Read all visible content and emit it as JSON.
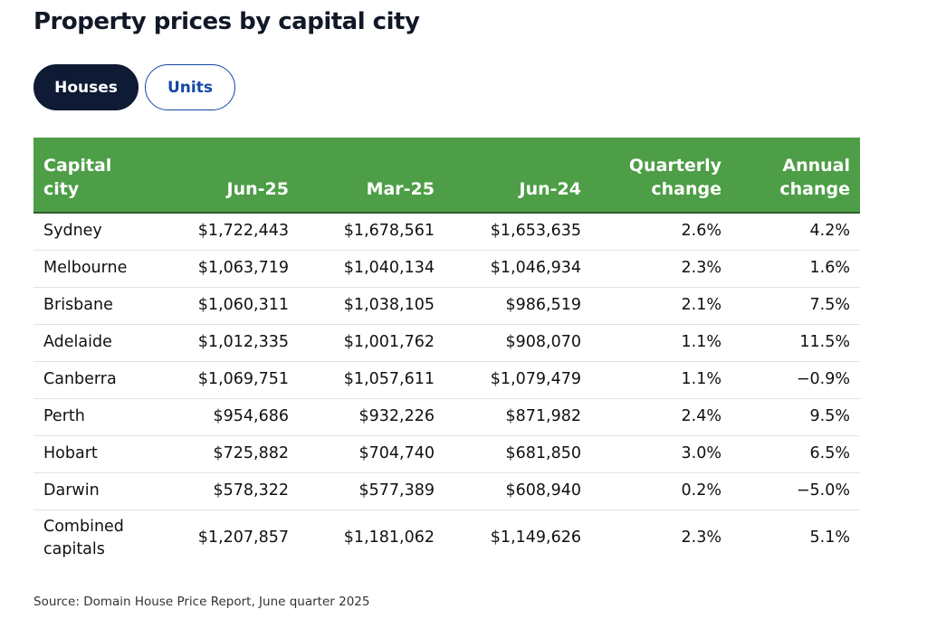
{
  "page": {
    "title": "Property prices by capital city",
    "source": "Source: Domain House Price Report, June quarter 2025"
  },
  "tabs": [
    {
      "label": "Houses",
      "active": true
    },
    {
      "label": "Units",
      "active": false
    }
  ],
  "colors": {
    "header_background": "#4d9e46",
    "active_tab": "#0f1a35",
    "inactive_tab_text": "#1447a6"
  },
  "chart_data": {
    "type": "table",
    "title": "Property prices by capital city",
    "columns": [
      "Capital city",
      "Jun-25",
      "Mar-25",
      "Jun-24",
      "Quarterly change",
      "Annual change"
    ],
    "rows": [
      {
        "city": "Sydney",
        "jun25": "$1,722,443",
        "mar25": "$1,678,561",
        "jun24": "$1,653,635",
        "quarterly": "2.6%",
        "annual": "4.2%"
      },
      {
        "city": "Melbourne",
        "jun25": "$1,063,719",
        "mar25": "$1,040,134",
        "jun24": "$1,046,934",
        "quarterly": "2.3%",
        "annual": "1.6%"
      },
      {
        "city": "Brisbane",
        "jun25": "$1,060,311",
        "mar25": "$1,038,105",
        "jun24": "$986,519",
        "quarterly": "2.1%",
        "annual": "7.5%"
      },
      {
        "city": "Adelaide",
        "jun25": "$1,012,335",
        "mar25": "$1,001,762",
        "jun24": "$908,070",
        "quarterly": "1.1%",
        "annual": "11.5%"
      },
      {
        "city": "Canberra",
        "jun25": "$1,069,751",
        "mar25": "$1,057,611",
        "jun24": "$1,079,479",
        "quarterly": "1.1%",
        "annual": "−0.9%"
      },
      {
        "city": "Perth",
        "jun25": "$954,686",
        "mar25": "$932,226",
        "jun24": "$871,982",
        "quarterly": "2.4%",
        "annual": "9.5%"
      },
      {
        "city": "Hobart",
        "jun25": "$725,882",
        "mar25": "$704,740",
        "jun24": "$681,850",
        "quarterly": "3.0%",
        "annual": "6.5%"
      },
      {
        "city": "Darwin",
        "jun25": "$578,322",
        "mar25": "$577,389",
        "jun24": "$608,940",
        "quarterly": "0.2%",
        "annual": "−5.0%"
      },
      {
        "city": "Combined capitals",
        "jun25": "$1,207,857",
        "mar25": "$1,181,062",
        "jun24": "$1,149,626",
        "quarterly": "2.3%",
        "annual": "5.1%"
      }
    ]
  }
}
